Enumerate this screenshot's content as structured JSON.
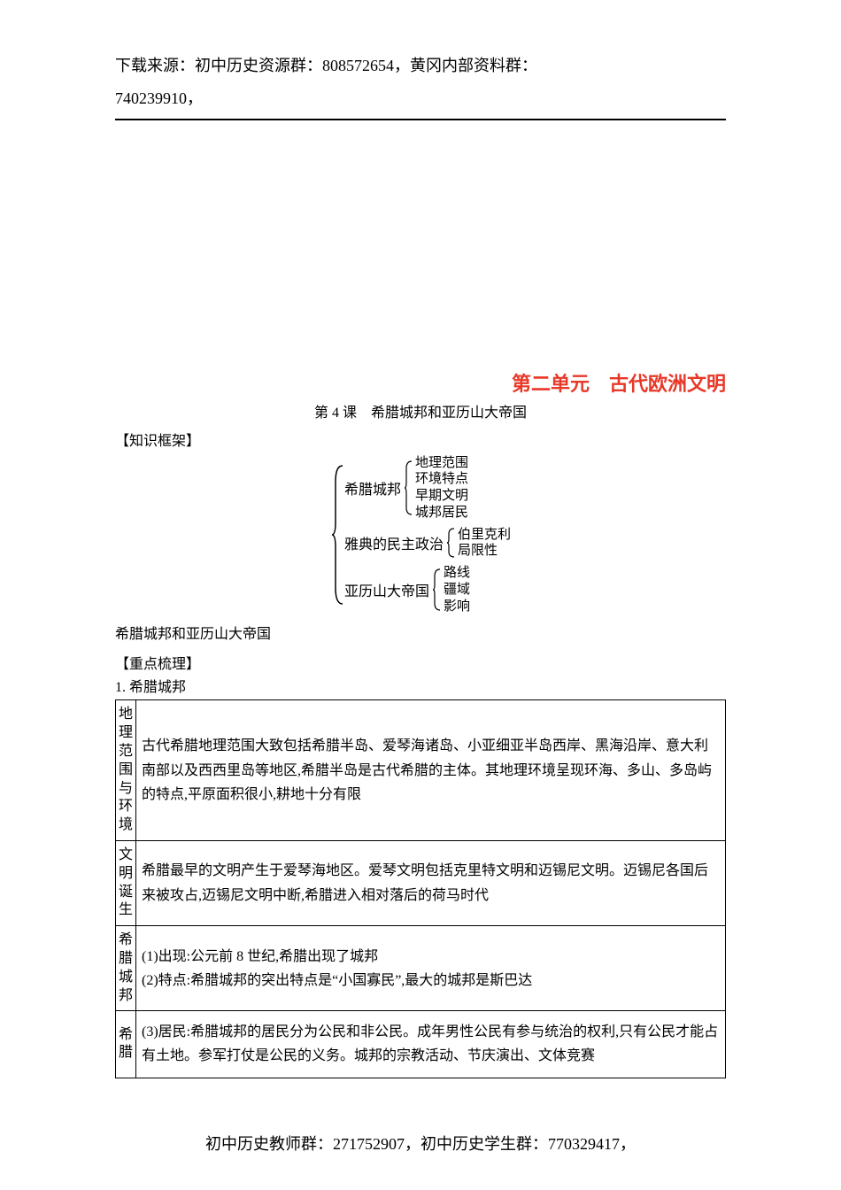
{
  "header": {
    "source_line1": "下载来源：初中历史资源群：808572654，黄冈内部资料群：",
    "source_line2": "740239910，"
  },
  "unit_title": "第二单元　古代欧洲文明",
  "lesson_title": "第 4 课　希腊城邦和亚历山大帝国",
  "section_knowledge_label": "【知识框架】",
  "framework": {
    "root": "希腊城邦和亚历山大帝国",
    "branches": [
      {
        "label": "希腊城邦",
        "items": [
          "地理范围",
          "环境特点",
          "早期文明",
          "城邦居民"
        ]
      },
      {
        "label": "雅典的民主政治",
        "items": [
          "伯里克利",
          "局限性"
        ]
      },
      {
        "label": "亚历山大帝国",
        "items": [
          "路线",
          "疆域",
          "影响"
        ]
      }
    ]
  },
  "review_label": "【重点梳理】",
  "list_heading": "1. 希腊城邦",
  "table": {
    "rows": [
      {
        "head": "地理范围与环境",
        "body": "古代希腊地理范围大致包括希腊半岛、爱琴海诸岛、小亚细亚半岛西岸、黑海沿岸、意大利南部以及西西里岛等地区,希腊半岛是古代希腊的主体。其地理环境呈现环海、多山、多岛屿的特点,平原面积很小,耕地十分有限"
      },
      {
        "head": "文明诞生",
        "body": "希腊最早的文明产生于爱琴海地区。爱琴文明包括克里特文明和迈锡尼文明。迈锡尼各国后来被攻占,迈锡尼文明中断,希腊进入相对落后的荷马时代"
      },
      {
        "head": "希腊城邦",
        "body": "(1)出现:公元前 8 世纪,希腊出现了城邦\n(2)特点:希腊城邦的突出特点是“小国寡民”,最大的城邦是斯巴达"
      },
      {
        "head": "希腊",
        "body": "(3)居民:希腊城邦的居民分为公民和非公民。成年男性公民有参与统治的权利,只有公民才能占有土地。参军打仗是公民的义务。城邦的宗教活动、节庆演出、文体竞赛"
      }
    ]
  },
  "footer": "初中历史教师群：271752907，初中历史学生群：770329417，",
  "colors": {
    "title_red": "#e83828",
    "text": "#000000",
    "border": "#000000"
  }
}
